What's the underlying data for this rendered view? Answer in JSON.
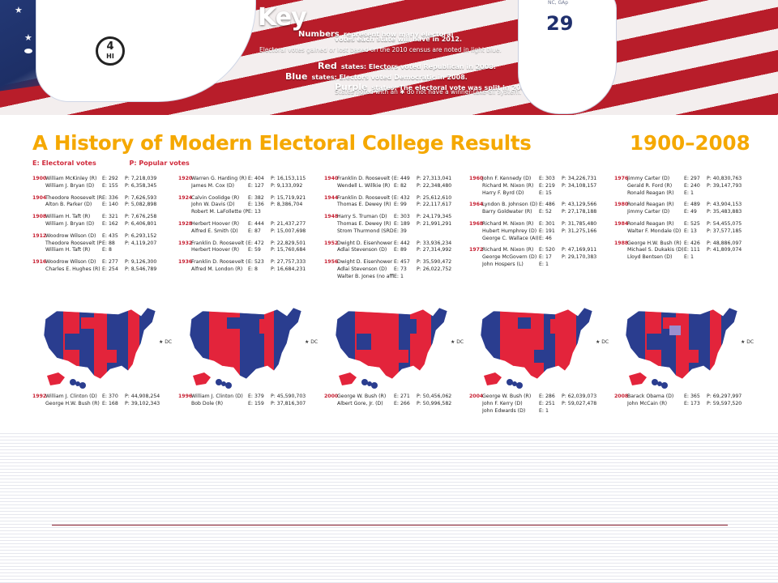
{
  "key": {
    "title": "Key",
    "line1_lead": "Numbers",
    "line1": "represent how many electoral",
    "line2": "votes each state will have in 2012.",
    "line3": "Electoral votes gained or lost based on the 2010 census are noted in light blue.",
    "line4_lead": "Red",
    "line4": "states: Electors voted Republican in 2008.",
    "line5_lead": "Blue",
    "line5": "states: Electors voted Democratic in 2008.",
    "line6_lead": "Purple",
    "line6": "states: The electoral vote was split in 2008.",
    "line7": "States noted with an ✱ do not have a winner-take-all system.",
    "hi_number": "4",
    "hi_label": "HI",
    "fl_number": "29",
    "fl_tag": "NC, GAp"
  },
  "poster": {
    "title": "A History of Modern Electoral College Results",
    "years": "1900–2008",
    "legend_e": "E: Electoral votes",
    "legend_p": "P: Popular votes",
    "dc": "★ DC"
  },
  "columns": [
    [
      {
        "year": "1900",
        "rows": [
          {
            "name": "William McKinley (R)",
            "e": "E: 292",
            "p": "P: 7,218,039"
          },
          {
            "name": "William J. Bryan (D)",
            "e": "E: 155",
            "p": "P: 6,358,345"
          }
        ]
      },
      {
        "year": "1904",
        "rows": [
          {
            "name": "Theodore Roosevelt (R)",
            "e": "E: 336",
            "p": "P: 7,626,593"
          },
          {
            "name": "Alton B. Parker (D)",
            "e": "E: 140",
            "p": "P: 5,082,898"
          }
        ]
      },
      {
        "year": "1908",
        "rows": [
          {
            "name": "William H. Taft (R)",
            "e": "E: 321",
            "p": "P: 7,676,258"
          },
          {
            "name": "William J. Bryan (D)",
            "e": "E: 162",
            "p": "P: 6,406,801"
          }
        ]
      },
      {
        "year": "1912",
        "rows": [
          {
            "name": "Woodrow Wilson (D)",
            "e": "E: 435",
            "p": "P: 6,293,152"
          },
          {
            "name": "Theodore Roosevelt (P)",
            "e": "E: 88",
            "p": "P: 4,119,207"
          },
          {
            "name": "William H. Taft (R)",
            "e": "E: 8",
            "p": ""
          }
        ]
      },
      {
        "year": "1916",
        "rows": [
          {
            "name": "Woodrow Wilson (D)",
            "e": "E: 277",
            "p": "P: 9,126,300"
          },
          {
            "name": "Charles E. Hughes (R)",
            "e": "E: 254",
            "p": "P: 8,546,789"
          }
        ]
      }
    ],
    [
      {
        "year": "1920",
        "rows": [
          {
            "name": "Warren G. Harding (R)",
            "e": "E: 404",
            "p": "P: 16,153,115"
          },
          {
            "name": "James M. Cox (D)",
            "e": "E: 127",
            "p": "P: 9,133,092"
          }
        ]
      },
      {
        "year": "1924",
        "rows": [
          {
            "name": "Calvin Coolidge (R)",
            "e": "E: 382",
            "p": "P: 15,719,921"
          },
          {
            "name": "John W. Davis (D)",
            "e": "E: 136",
            "p": "P: 8,386,704"
          },
          {
            "name": "Robert M. LaFollette (P)",
            "e": "E: 13",
            "p": ""
          }
        ]
      },
      {
        "year": "1928",
        "rows": [
          {
            "name": "Herbert Hoover (R)",
            "e": "E: 444",
            "p": "P: 21,437,277"
          },
          {
            "name": "Alfred E. Smith (D)",
            "e": "E: 87",
            "p": "P: 15,007,698"
          }
        ]
      },
      {
        "year": "1932",
        "rows": [
          {
            "name": "Franklin D. Roosevelt (D)",
            "e": "E: 472",
            "p": "P: 22,829,501"
          },
          {
            "name": "Herbert Hoover (R)",
            "e": "E: 59",
            "p": "P: 15,760,684"
          }
        ]
      },
      {
        "year": "1936",
        "rows": [
          {
            "name": "Franklin D. Roosevelt (D)",
            "e": "E: 523",
            "p": "P: 27,757,333"
          },
          {
            "name": "Alfred M. London (R)",
            "e": "E: 8",
            "p": "P: 16,684,231"
          }
        ]
      }
    ],
    [
      {
        "year": "1940",
        "rows": [
          {
            "name": "Franklin D. Roosevelt (D)",
            "e": "E: 449",
            "p": "P: 27,313,041"
          },
          {
            "name": "Wendell L. Willkie (R)",
            "e": "E: 82",
            "p": "P: 22,348,480"
          }
        ]
      },
      {
        "year": "1944",
        "rows": [
          {
            "name": "Franklin D. Roosevelt (D)",
            "e": "E: 432",
            "p": "P: 25,612,610"
          },
          {
            "name": "Thomas E. Dewey (R)",
            "e": "E: 99",
            "p": "P: 22,117,617"
          }
        ]
      },
      {
        "year": "1948",
        "rows": [
          {
            "name": "Harry S. Truman (D)",
            "e": "E: 303",
            "p": "P: 24,179,345"
          },
          {
            "name": "Thomas E. Dewey (R)",
            "e": "E: 189",
            "p": "P: 21,991,291"
          },
          {
            "name": "Strom Thurmond (SRD)",
            "e": "E: 39",
            "p": ""
          }
        ]
      },
      {
        "year": "1952",
        "rows": [
          {
            "name": "Dwight D. Eisenhower (R)",
            "e": "E: 442",
            "p": "P: 33,936,234"
          },
          {
            "name": "Adlai Stevenson (D)",
            "e": "E: 89",
            "p": "P: 27,314,992"
          }
        ]
      },
      {
        "year": "1956",
        "rows": [
          {
            "name": "Dwight D. Eisenhower (R)",
            "e": "E: 457",
            "p": "P: 35,590,472"
          },
          {
            "name": "Adlai Stevenson (D)",
            "e": "E: 73",
            "p": "P: 26,022,752"
          },
          {
            "name": "Walter B. Jones (no affiliation)",
            "e": "E: 1",
            "p": ""
          }
        ]
      }
    ],
    [
      {
        "year": "1960",
        "rows": [
          {
            "name": "John F. Kennedy (D)",
            "e": "E: 303",
            "p": "P: 34,226,731"
          },
          {
            "name": "Richard M. Nixon (R)",
            "e": "E: 219",
            "p": "P: 34,108,157"
          },
          {
            "name": "Harry F. Byrd (D)",
            "e": "E: 15",
            "p": ""
          }
        ]
      },
      {
        "year": "1964",
        "rows": [
          {
            "name": "Lyndon B. Johnson (D)",
            "e": "E: 486",
            "p": "P: 43,129,566"
          },
          {
            "name": "Barry Goldwater (R)",
            "e": "E: 52",
            "p": "P: 27,178,188"
          }
        ]
      },
      {
        "year": "1968",
        "rows": [
          {
            "name": "Richard M. Nixon (R)",
            "e": "E: 301",
            "p": "P: 31,785,480"
          },
          {
            "name": "Hubert Humphrey (D)",
            "e": "E: 191",
            "p": "P: 31,275,166"
          },
          {
            "name": "George C. Wallace (AI)",
            "e": "E: 46",
            "p": ""
          }
        ]
      },
      {
        "year": "1972",
        "rows": [
          {
            "name": "Richard M. Nixon (R)",
            "e": "E: 520",
            "p": "P: 47,169,911"
          },
          {
            "name": "George McGovern (D)",
            "e": "E: 17",
            "p": "P: 29,170,383"
          },
          {
            "name": "John Hospers (L)",
            "e": "E: 1",
            "p": ""
          }
        ]
      }
    ],
    [
      {
        "year": "1976",
        "rows": [
          {
            "name": "Jimmy Carter (D)",
            "e": "E: 297",
            "p": "P: 40,830,763"
          },
          {
            "name": "Gerald R. Ford (R)",
            "e": "E: 240",
            "p": "P: 39,147,793"
          },
          {
            "name": "Ronald Reagan (R)",
            "e": "E: 1",
            "p": ""
          }
        ]
      },
      {
        "year": "1980",
        "rows": [
          {
            "name": "Ronald Reagan (R)",
            "e": "E: 489",
            "p": "P: 43,904,153"
          },
          {
            "name": "Jimmy Carter (D)",
            "e": "E: 49",
            "p": "P: 35,483,883"
          }
        ]
      },
      {
        "year": "1984",
        "rows": [
          {
            "name": "Ronald Reagan (R)",
            "e": "E: 525",
            "p": "P: 54,455,075"
          },
          {
            "name": "Walter F. Mondale (D)",
            "e": "E: 13",
            "p": "P: 37,577,185"
          }
        ]
      },
      {
        "year": "1988",
        "rows": [
          {
            "name": "George H.W. Bush (R)",
            "e": "E: 426",
            "p": "P: 48,886,097"
          },
          {
            "name": "Michael S. Dukakis (D)",
            "e": "E: 111",
            "p": "P: 41,809,074"
          },
          {
            "name": "Lloyd Bentsen (D)",
            "e": "E: 1",
            "p": ""
          }
        ]
      }
    ]
  ],
  "bottom": [
    {
      "year": "1992",
      "rows": [
        {
          "name": "William J. Clinton (D)",
          "e": "E: 370",
          "p": "P: 44,908,254"
        },
        {
          "name": "George H.W. Bush (R)",
          "e": "E: 168",
          "p": "P: 39,102,343"
        }
      ]
    },
    {
      "year": "1996",
      "rows": [
        {
          "name": "William J. Clinton (D)",
          "e": "E: 379",
          "p": "P: 45,590,703"
        },
        {
          "name": "Bob Dole (R)",
          "e": "E: 159",
          "p": "P: 37,816,307"
        }
      ]
    },
    {
      "year": "2000",
      "rows": [
        {
          "name": "George W. Bush (R)",
          "e": "E: 271",
          "p": "P: 50,456,062"
        },
        {
          "name": "Albert Gore, Jr. (D)",
          "e": "E: 266",
          "p": "P: 50,996,582"
        }
      ]
    },
    {
      "year": "2004",
      "rows": [
        {
          "name": "George W. Bush (R)",
          "e": "E: 286",
          "p": "P: 62,039,073"
        },
        {
          "name": "John F. Kerry (D)",
          "e": "E: 251",
          "p": "P: 59,027,478"
        },
        {
          "name": "John Edwards (D)",
          "e": "E: 1",
          "p": ""
        }
      ]
    },
    {
      "year": "2008",
      "rows": [
        {
          "name": "Barack Obama (D)",
          "e": "E: 365",
          "p": "P: 69,297,997"
        },
        {
          "name": "John McCain (R)",
          "e": "E: 173",
          "p": "P: 59,597,520"
        }
      ]
    }
  ],
  "colors": {
    "republican": "#e3243b",
    "democrat": "#2a3d8f",
    "split": "#9a8fcf",
    "title": "#f5a800",
    "year": "#c72032"
  }
}
